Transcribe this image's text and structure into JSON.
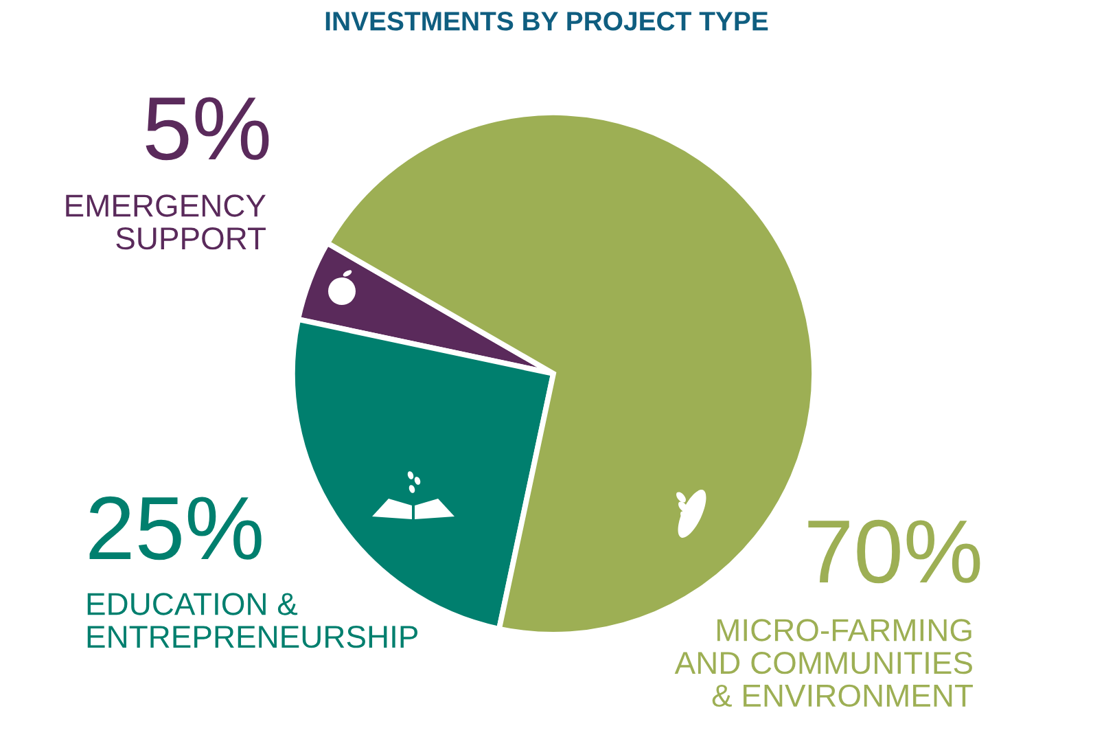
{
  "chart_data": {
    "type": "pie",
    "title": "INVESTMENTS BY PROJECT TYPE",
    "categories": [
      "EMERGENCY\nSUPPORT",
      "EDUCATION &\nENTREPRENEURSHIP",
      "MICRO-FARMING\nAND COMMUNITIES\n& ENVIRONMENT"
    ],
    "values": [
      5,
      25,
      70
    ],
    "colors": [
      "#5a2a5b",
      "#007f6e",
      "#9daf54"
    ],
    "value_labels": [
      "5%",
      "25%",
      "70%"
    ]
  }
}
